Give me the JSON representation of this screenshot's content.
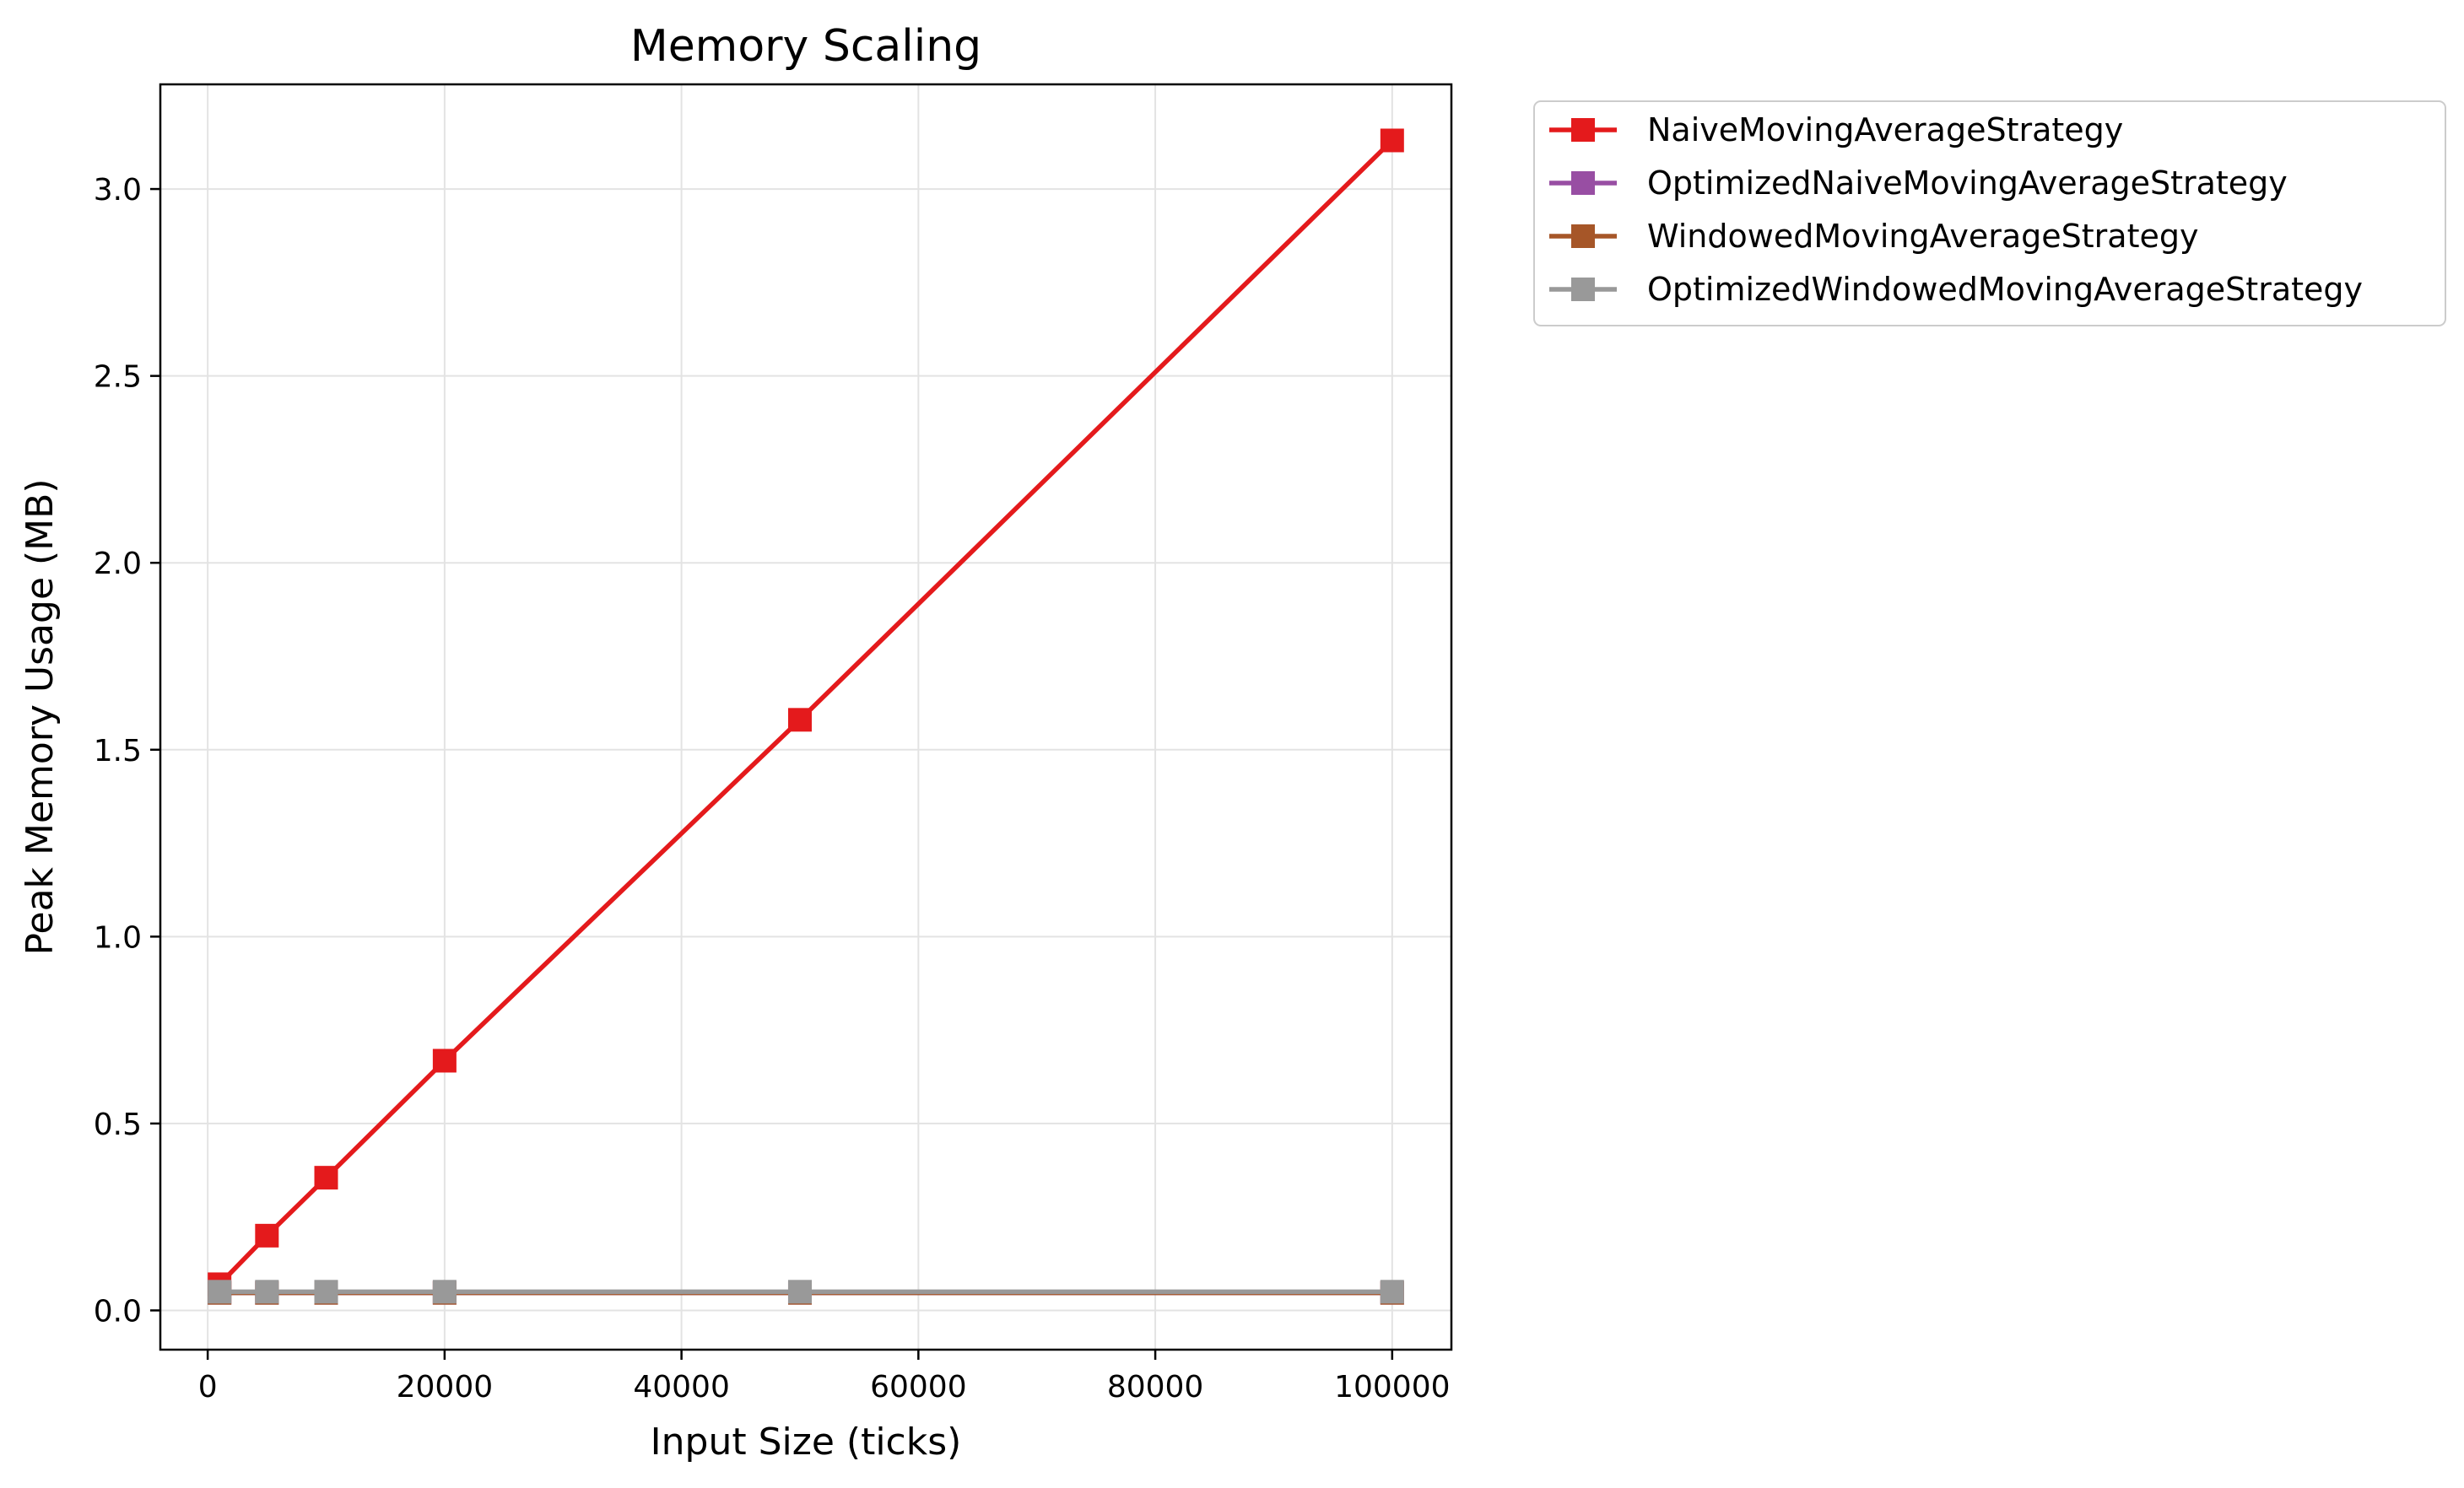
{
  "chart_data": {
    "type": "line",
    "title": "Memory Scaling",
    "xlabel": "Input Size (ticks)",
    "ylabel": "Peak Memory Usage (MB)",
    "x": [
      1000,
      5000,
      10000,
      20000,
      50000,
      100000
    ],
    "xlim": [
      -4000,
      105000
    ],
    "ylim": [
      -0.105,
      3.28
    ],
    "xticks": [
      0,
      20000,
      40000,
      60000,
      80000,
      100000
    ],
    "xtick_labels": [
      "0",
      "20000",
      "40000",
      "60000",
      "80000",
      "100000"
    ],
    "yticks": [
      0.0,
      0.5,
      1.0,
      1.5,
      2.0,
      2.5,
      3.0
    ],
    "ytick_labels": [
      "0.0",
      "0.5",
      "1.0",
      "1.5",
      "2.0",
      "2.5",
      "3.0"
    ],
    "grid": true,
    "legend_position": "outside-top-right",
    "series": [
      {
        "name": "NaiveMovingAverageStrategy",
        "color": "#e41a1c",
        "marker": "square",
        "values": [
          0.07,
          0.2,
          0.355,
          0.668,
          1.58,
          3.13
        ]
      },
      {
        "name": "OptimizedNaiveMovingAverageStrategy",
        "color": "#984ea3",
        "marker": "square",
        "values": [
          0.047,
          0.047,
          0.047,
          0.047,
          0.047,
          0.047
        ]
      },
      {
        "name": "WindowedMovingAverageStrategy",
        "color": "#a65628",
        "marker": "square",
        "values": [
          0.047,
          0.047,
          0.047,
          0.047,
          0.047,
          0.047
        ]
      },
      {
        "name": "OptimizedWindowedMovingAverageStrategy",
        "color": "#999999",
        "marker": "square",
        "values": [
          0.05,
          0.05,
          0.05,
          0.05,
          0.05,
          0.05
        ]
      }
    ]
  }
}
